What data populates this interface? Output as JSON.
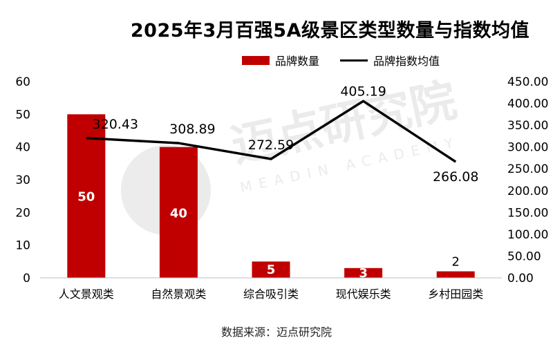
{
  "watermark": {
    "main": "迈点研究院",
    "sub": "MEADIN ACADEMY"
  },
  "source": "数据来源：迈点研究院",
  "chart_data": {
    "type": "bar",
    "title": "2025年3月百强5A级景区类型数量与指数均值",
    "categories": [
      "人文景观类",
      "自然景观类",
      "综合吸引类",
      "现代娱乐类",
      "乡村田园类"
    ],
    "legend_position": "top",
    "grid": false,
    "y_left": {
      "ticks": [
        "0",
        "10",
        "20",
        "30",
        "40",
        "50",
        "60"
      ],
      "ylim": [
        0,
        60
      ]
    },
    "y_right": {
      "ticks": [
        "0.00",
        "50.00",
        "100.00",
        "150.00",
        "200.00",
        "250.00",
        "300.00",
        "350.00",
        "400.00",
        "450.00"
      ],
      "ylim": [
        0,
        450
      ]
    },
    "series": [
      {
        "name": "品牌数量",
        "type": "bar",
        "axis": "left",
        "color": "#c00000",
        "values": [
          50,
          40,
          5,
          3,
          2
        ],
        "labels": [
          "50",
          "40",
          "5",
          "3",
          "2"
        ]
      },
      {
        "name": "品牌指数均值",
        "type": "line",
        "axis": "right",
        "color": "#000000",
        "values": [
          320.43,
          308.89,
          272.59,
          405.19,
          266.08
        ],
        "labels": [
          "320.43",
          "308.89",
          "272.59",
          "405.19",
          "266.08"
        ]
      }
    ]
  }
}
